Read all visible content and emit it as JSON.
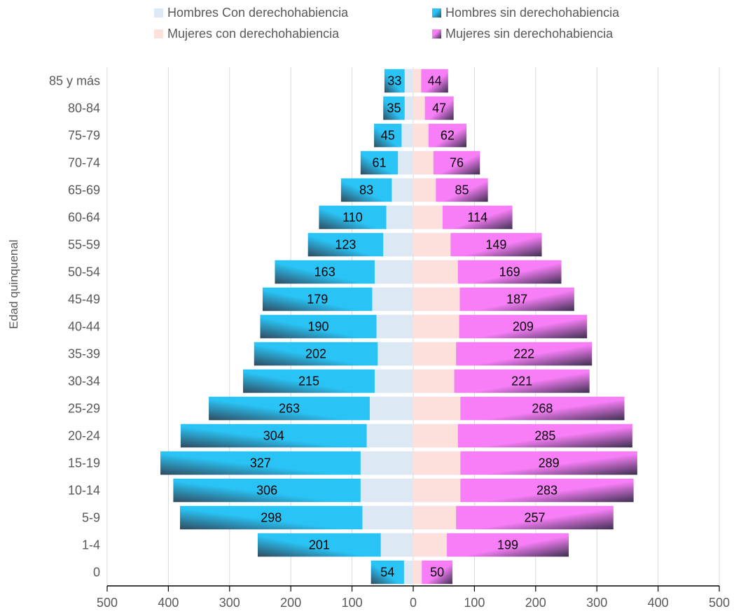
{
  "chart_data": {
    "type": "bar",
    "orientation": "horizontal-population-pyramid",
    "ylabel": "Edad quinquenal",
    "categories": [
      "0",
      "1-4",
      "5-9",
      "10-14",
      "15-19",
      "20-24",
      "25-29",
      "30-34",
      "35-39",
      "40-44",
      "45-49",
      "50-54",
      "55-59",
      "60-64",
      "65-69",
      "70-74",
      "75-79",
      "80-84",
      "85 y más"
    ],
    "xlim": [
      -500,
      500
    ],
    "x_ticks": [
      "500",
      "400",
      "300",
      "200",
      "100",
      "0",
      "100",
      "200",
      "300",
      "400",
      "500"
    ],
    "grid": "vertical",
    "legend_position": "top",
    "series": [
      {
        "name": "Hombres Con derechohabiencia",
        "side": "left",
        "color": "#dce9f5",
        "values": [
          15,
          53,
          83,
          86,
          86,
          76,
          71,
          63,
          58,
          60,
          67,
          63,
          49,
          44,
          35,
          25,
          19,
          14,
          14
        ]
      },
      {
        "name": "Hombres sin derechohabiencia",
        "side": "left",
        "color": "#29c3f5",
        "values": [
          54,
          201,
          298,
          306,
          327,
          304,
          263,
          215,
          202,
          190,
          179,
          163,
          123,
          110,
          83,
          61,
          45,
          35,
          33
        ]
      },
      {
        "name": "Mujeres con derechohabiencia",
        "side": "right",
        "color": "#fde0dc",
        "values": [
          14,
          55,
          70,
          77,
          77,
          73,
          77,
          67,
          70,
          75,
          76,
          73,
          61,
          48,
          37,
          33,
          25,
          19,
          13
        ]
      },
      {
        "name": "Mujeres sin derechohabiencia",
        "side": "right",
        "color": "#f77ef7",
        "values": [
          50,
          199,
          257,
          283,
          289,
          285,
          268,
          221,
          222,
          209,
          187,
          169,
          149,
          114,
          85,
          76,
          62,
          47,
          44
        ]
      }
    ]
  }
}
